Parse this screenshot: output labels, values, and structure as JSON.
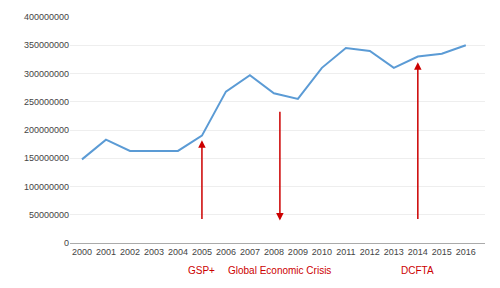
{
  "chart_data": {
    "type": "line",
    "x": [
      2000,
      2001,
      2002,
      2003,
      2004,
      2005,
      2006,
      2007,
      2008,
      2009,
      2010,
      2011,
      2012,
      2013,
      2014,
      2015,
      2016
    ],
    "values": [
      148000000,
      183000000,
      163000000,
      163000000,
      163000000,
      190000000,
      268000000,
      297000000,
      265000000,
      255000000,
      310000000,
      345000000,
      340000000,
      310000000,
      330000000,
      335000000,
      350000000
    ],
    "color": "#5B9BD5",
    "xlim": [
      1999.5,
      2016.8
    ],
    "xticks": [
      2000,
      2001,
      2002,
      2003,
      2004,
      2005,
      2006,
      2007,
      2008,
      2009,
      2010,
      2011,
      2012,
      2013,
      2014,
      2015,
      2016
    ],
    "ylim": [
      0,
      400000000
    ],
    "yticks": [
      0,
      50000000,
      100000000,
      150000000,
      200000000,
      250000000,
      300000000,
      350000000,
      400000000
    ],
    "grid": true,
    "annotations": [
      {
        "text": "GSP+",
        "x": 2005,
        "y_from": 40000000,
        "y_to": 182000000,
        "color": "#cc0000"
      },
      {
        "text": "Global Economic Crisis",
        "x": 2008.25,
        "y_from": 235000000,
        "y_to": 40000000,
        "color": "#cc0000"
      },
      {
        "text": "DCFTA",
        "x": 2014,
        "y_from": 40000000,
        "y_to": 320000000,
        "color": "#cc0000"
      }
    ]
  }
}
